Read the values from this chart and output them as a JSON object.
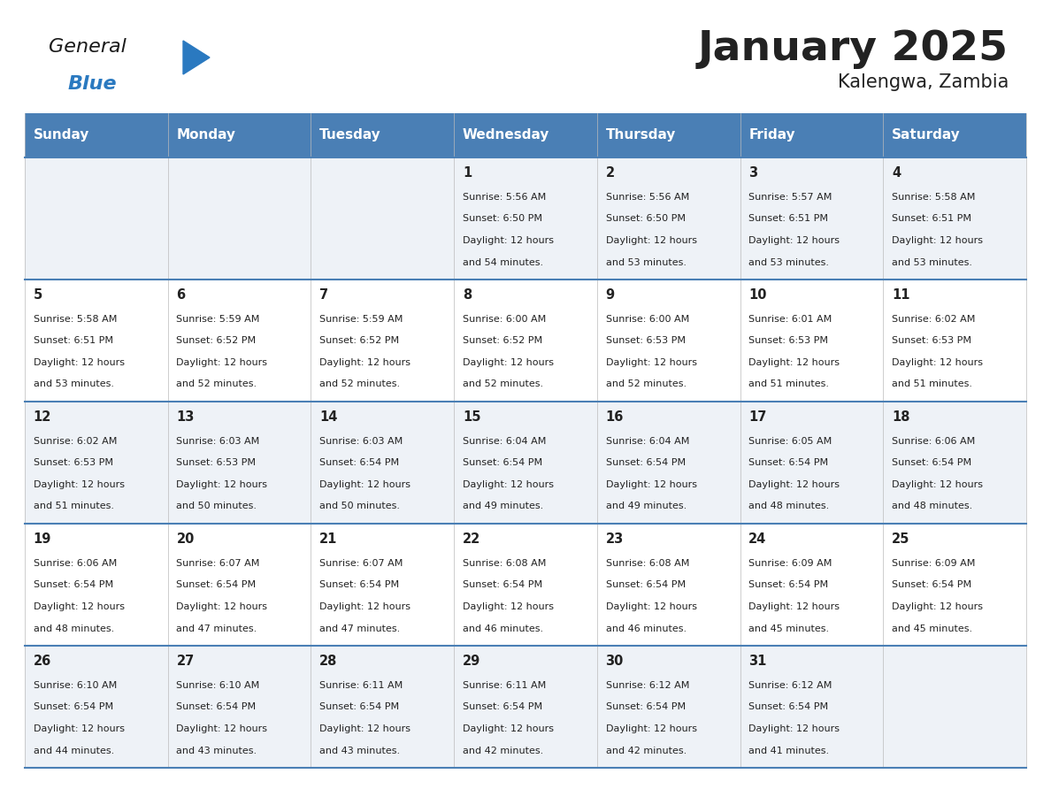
{
  "title": "January 2025",
  "subtitle": "Kalengwa, Zambia",
  "header_bg": "#4a7fb5",
  "header_text": "#ffffff",
  "row_bg_odd": "#eef2f7",
  "row_bg_even": "#ffffff",
  "border_color": "#4a7fb5",
  "text_color": "#222222",
  "days_of_week": [
    "Sunday",
    "Monday",
    "Tuesday",
    "Wednesday",
    "Thursday",
    "Friday",
    "Saturday"
  ],
  "calendar_data": [
    [
      {
        "day": "",
        "sunrise": "",
        "sunset": "",
        "daylight_min": ""
      },
      {
        "day": "",
        "sunrise": "",
        "sunset": "",
        "daylight_min": ""
      },
      {
        "day": "",
        "sunrise": "",
        "sunset": "",
        "daylight_min": ""
      },
      {
        "day": "1",
        "sunrise": "5:56 AM",
        "sunset": "6:50 PM",
        "daylight_min": "54 minutes."
      },
      {
        "day": "2",
        "sunrise": "5:56 AM",
        "sunset": "6:50 PM",
        "daylight_min": "53 minutes."
      },
      {
        "day": "3",
        "sunrise": "5:57 AM",
        "sunset": "6:51 PM",
        "daylight_min": "53 minutes."
      },
      {
        "day": "4",
        "sunrise": "5:58 AM",
        "sunset": "6:51 PM",
        "daylight_min": "53 minutes."
      }
    ],
    [
      {
        "day": "5",
        "sunrise": "5:58 AM",
        "sunset": "6:51 PM",
        "daylight_min": "53 minutes."
      },
      {
        "day": "6",
        "sunrise": "5:59 AM",
        "sunset": "6:52 PM",
        "daylight_min": "52 minutes."
      },
      {
        "day": "7",
        "sunrise": "5:59 AM",
        "sunset": "6:52 PM",
        "daylight_min": "52 minutes."
      },
      {
        "day": "8",
        "sunrise": "6:00 AM",
        "sunset": "6:52 PM",
        "daylight_min": "52 minutes."
      },
      {
        "day": "9",
        "sunrise": "6:00 AM",
        "sunset": "6:53 PM",
        "daylight_min": "52 minutes."
      },
      {
        "day": "10",
        "sunrise": "6:01 AM",
        "sunset": "6:53 PM",
        "daylight_min": "51 minutes."
      },
      {
        "day": "11",
        "sunrise": "6:02 AM",
        "sunset": "6:53 PM",
        "daylight_min": "51 minutes."
      }
    ],
    [
      {
        "day": "12",
        "sunrise": "6:02 AM",
        "sunset": "6:53 PM",
        "daylight_min": "51 minutes."
      },
      {
        "day": "13",
        "sunrise": "6:03 AM",
        "sunset": "6:53 PM",
        "daylight_min": "50 minutes."
      },
      {
        "day": "14",
        "sunrise": "6:03 AM",
        "sunset": "6:54 PM",
        "daylight_min": "50 minutes."
      },
      {
        "day": "15",
        "sunrise": "6:04 AM",
        "sunset": "6:54 PM",
        "daylight_min": "49 minutes."
      },
      {
        "day": "16",
        "sunrise": "6:04 AM",
        "sunset": "6:54 PM",
        "daylight_min": "49 minutes."
      },
      {
        "day": "17",
        "sunrise": "6:05 AM",
        "sunset": "6:54 PM",
        "daylight_min": "48 minutes."
      },
      {
        "day": "18",
        "sunrise": "6:06 AM",
        "sunset": "6:54 PM",
        "daylight_min": "48 minutes."
      }
    ],
    [
      {
        "day": "19",
        "sunrise": "6:06 AM",
        "sunset": "6:54 PM",
        "daylight_min": "48 minutes."
      },
      {
        "day": "20",
        "sunrise": "6:07 AM",
        "sunset": "6:54 PM",
        "daylight_min": "47 minutes."
      },
      {
        "day": "21",
        "sunrise": "6:07 AM",
        "sunset": "6:54 PM",
        "daylight_min": "47 minutes."
      },
      {
        "day": "22",
        "sunrise": "6:08 AM",
        "sunset": "6:54 PM",
        "daylight_min": "46 minutes."
      },
      {
        "day": "23",
        "sunrise": "6:08 AM",
        "sunset": "6:54 PM",
        "daylight_min": "46 minutes."
      },
      {
        "day": "24",
        "sunrise": "6:09 AM",
        "sunset": "6:54 PM",
        "daylight_min": "45 minutes."
      },
      {
        "day": "25",
        "sunrise": "6:09 AM",
        "sunset": "6:54 PM",
        "daylight_min": "45 minutes."
      }
    ],
    [
      {
        "day": "26",
        "sunrise": "6:10 AM",
        "sunset": "6:54 PM",
        "daylight_min": "44 minutes."
      },
      {
        "day": "27",
        "sunrise": "6:10 AM",
        "sunset": "6:54 PM",
        "daylight_min": "43 minutes."
      },
      {
        "day": "28",
        "sunrise": "6:11 AM",
        "sunset": "6:54 PM",
        "daylight_min": "43 minutes."
      },
      {
        "day": "29",
        "sunrise": "6:11 AM",
        "sunset": "6:54 PM",
        "daylight_min": "42 minutes."
      },
      {
        "day": "30",
        "sunrise": "6:12 AM",
        "sunset": "6:54 PM",
        "daylight_min": "42 minutes."
      },
      {
        "day": "31",
        "sunrise": "6:12 AM",
        "sunset": "6:54 PM",
        "daylight_min": "41 minutes."
      },
      {
        "day": "",
        "sunrise": "",
        "sunset": "",
        "daylight_min": ""
      }
    ]
  ],
  "logo_color_general": "#1a1a1a",
  "logo_color_blue": "#2a79c0",
  "logo_triangle_color": "#2a79c0"
}
